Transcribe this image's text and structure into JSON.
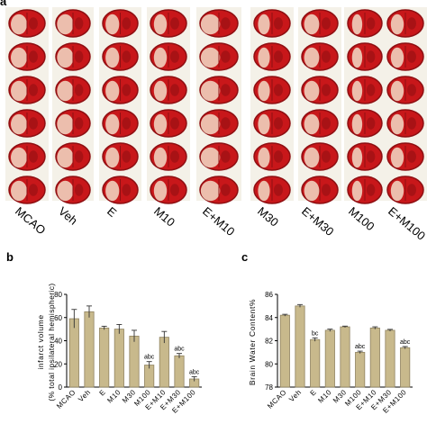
{
  "panel_a": {
    "letter": "a",
    "groups": [
      "MCAO",
      "Veh",
      "E",
      "M10",
      "E+M10",
      "M30",
      "E+M30",
      "M100",
      "E+M100"
    ]
  },
  "panel_b": {
    "letter": "b"
  },
  "panel_c": {
    "letter": "c"
  },
  "colors": {
    "bar": "#c8b98c",
    "bar_edge": "#8f8360",
    "slice_dark": "#8e0f12",
    "slice_red": "#c8171a",
    "slice_pale": "#f2dcc8"
  },
  "chart_data": [
    {
      "type": "bar",
      "categories": [
        "MCAO",
        "Veh",
        "E",
        "M10",
        "M30",
        "M100",
        "E+M10",
        "E+M30",
        "E+M100"
      ],
      "values": [
        59,
        65,
        51,
        50,
        44,
        19,
        43,
        27,
        7
      ],
      "errors": [
        8,
        5,
        1.5,
        4,
        5,
        3,
        5,
        2,
        2
      ],
      "annotations": [
        "",
        "",
        "",
        "",
        "",
        "abc",
        "",
        "abc",
        "abc"
      ],
      "title": "",
      "xlabel": "",
      "ylabel": "infarct volume",
      "ylabel2": "(% total ipsilateral hemispheric)",
      "ylim": [
        0,
        80
      ],
      "yticks": [
        0,
        20,
        40,
        60,
        80
      ]
    },
    {
      "type": "bar",
      "categories": [
        "MCAO",
        "Veh",
        "E",
        "M10",
        "M30",
        "M100",
        "E+M10",
        "E+M30",
        "E+M100"
      ],
      "values": [
        84.2,
        85.0,
        82.1,
        82.9,
        83.2,
        81.0,
        83.1,
        82.9,
        81.4
      ],
      "errors": [
        0.08,
        0.12,
        0.15,
        0.1,
        0.06,
        0.1,
        0.1,
        0.08,
        0.1
      ],
      "annotations": [
        "",
        "",
        "bc",
        "",
        "",
        "abc",
        "",
        "",
        "abc"
      ],
      "title": "",
      "xlabel": "",
      "ylabel": "Brain Water Content%",
      "ylim": [
        78,
        86
      ],
      "yticks": [
        78,
        80,
        82,
        84,
        86
      ]
    }
  ]
}
